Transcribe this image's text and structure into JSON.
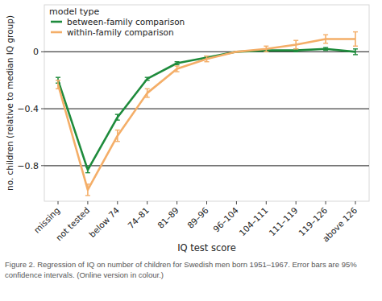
{
  "chart_data": {
    "type": "line",
    "x_label": "IQ test score",
    "y_label": "no. children (relative to median IQ group)",
    "caption": "Figure 2. Regression of IQ on number of children for Swedish men born 1951–1967. Error bars are 95% confidence intervals. (Online version in colour.)",
    "legend_title": "model type",
    "legend": "top-left",
    "grid": true,
    "categories": [
      "missing",
      "not tested",
      "below 74",
      "74–81",
      "81–89",
      "89–96",
      "96–104",
      "104–111",
      "111–119",
      "119–126",
      "above 126"
    ],
    "ylim": [
      -1.05,
      0.33
    ],
    "yticks": [
      {
        "value": -0.8,
        "label": "−0.8"
      },
      {
        "value": -0.4,
        "label": "−0.4"
      },
      0
    ],
    "series": [
      {
        "name": "between-family comparison",
        "color": "#1e8b3c",
        "values": [
          -0.2,
          -0.83,
          -0.46,
          -0.19,
          -0.08,
          -0.04,
          0,
          0.01,
          0.01,
          0.02,
          0.0
        ],
        "errors": [
          0.02,
          0.02,
          0.02,
          0.01,
          0.01,
          0.01,
          0,
          0.01,
          0.01,
          0.01,
          0.02
        ]
      },
      {
        "name": "within-family comparison",
        "color": "#f4ae68",
        "values": [
          -0.23,
          -0.97,
          -0.59,
          -0.29,
          -0.12,
          -0.05,
          0,
          0.02,
          0.05,
          0.09,
          0.09
        ],
        "errors": [
          0.03,
          0.04,
          0.04,
          0.03,
          0.02,
          0.02,
          0,
          0.02,
          0.03,
          0.03,
          0.05
        ]
      }
    ]
  }
}
